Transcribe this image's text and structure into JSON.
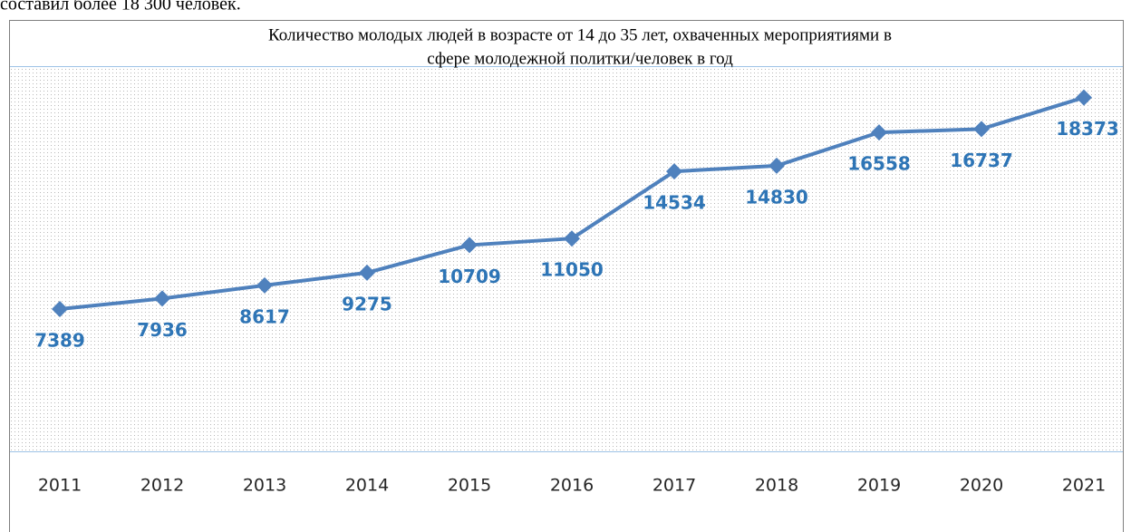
{
  "document_text": "составил более 18 300 человек.",
  "chart_data": {
    "type": "line",
    "title": [
      "Количество молодых людей в возрасте от 14 до 35 лет, охваченных мероприятиями в",
      "сфере молодежной политки/человек в год"
    ],
    "categories": [
      "2011",
      "2012",
      "2013",
      "2014",
      "2015",
      "2016",
      "2017",
      "2018",
      "2019",
      "2020",
      "2021"
    ],
    "values": [
      7389,
      7936,
      8617,
      9275,
      10709,
      11050,
      14534,
      14830,
      16558,
      16737,
      18373
    ],
    "color": "#4f81bd",
    "label_color": "#2e75b6",
    "ylim": [
      0,
      20000
    ]
  }
}
